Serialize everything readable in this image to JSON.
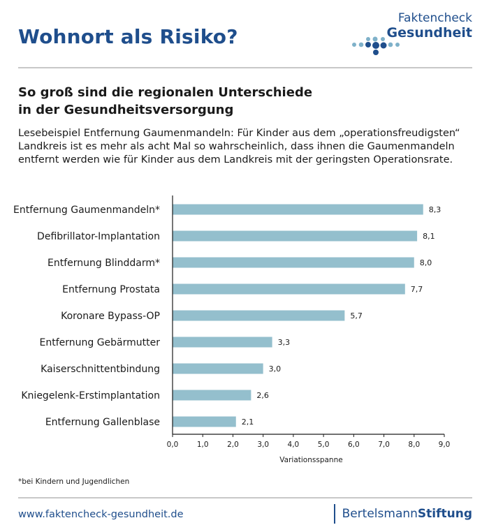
{
  "header": {
    "title": "Wohnort als Risiko?",
    "logo_line1": "Faktencheck",
    "logo_line2": "Gesundheit"
  },
  "subtitle_lines": [
    "So groß sind die regionalen Unterschiede",
    "in der Gesundheitsversorgung"
  ],
  "description_lines": [
    "Lesebeispiel Entfernung Gaumenmandeln: Für Kinder aus dem „operationsfreudigsten“",
    "Landkreis ist es mehr als acht Mal so wahrscheinlich, dass ihnen die Gaumenmandeln",
    "entfernt werden wie für Kinder aus dem Landkreis mit der geringsten Operationsrate."
  ],
  "chart_data": {
    "type": "bar",
    "orientation": "horizontal",
    "categories": [
      "Entfernung Gaumenmandeln*",
      "Defibrillator-Implantation",
      "Entfernung Blinddarm*",
      "Entfernung Prostata",
      "Koronare Bypass-OP",
      "Entfernung Gebärmutter",
      "Kaiserschnittentbindung",
      "Kniegelenk-Erstimplantation",
      "Entfernung Gallenblase"
    ],
    "values": [
      8.3,
      8.1,
      8.0,
      7.7,
      5.7,
      3.3,
      3.0,
      2.6,
      2.1
    ],
    "value_labels": [
      "8,3",
      "8,1",
      "8,0",
      "7,7",
      "5,7",
      "3,3",
      "3,0",
      "2,6",
      "2,1"
    ],
    "xlabel": "Variationsspanne",
    "xlim": [
      0,
      9
    ],
    "ticks": [
      0,
      1,
      2,
      3,
      4,
      5,
      6,
      7,
      8,
      9
    ],
    "tick_labels": [
      "0,0",
      "1,0",
      "2,0",
      "3,0",
      "4,0",
      "5,0",
      "6,0",
      "7,0",
      "8,0",
      "9,0"
    ],
    "bar_color": "#94bfcd",
    "axis_color": "#1a1a1a",
    "grid": false
  },
  "footnote": "*bei Kindern und Jugendlichen",
  "footer": {
    "url": "www.faktencheck-gesundheit.de",
    "brand_part1": "Bertelsmann",
    "brand_part2": "Stiftung"
  },
  "colors": {
    "brand_blue": "#1f4e8c",
    "logo_light_blue": "#7fb1c9",
    "rule_gray": "#c8c8c8"
  }
}
